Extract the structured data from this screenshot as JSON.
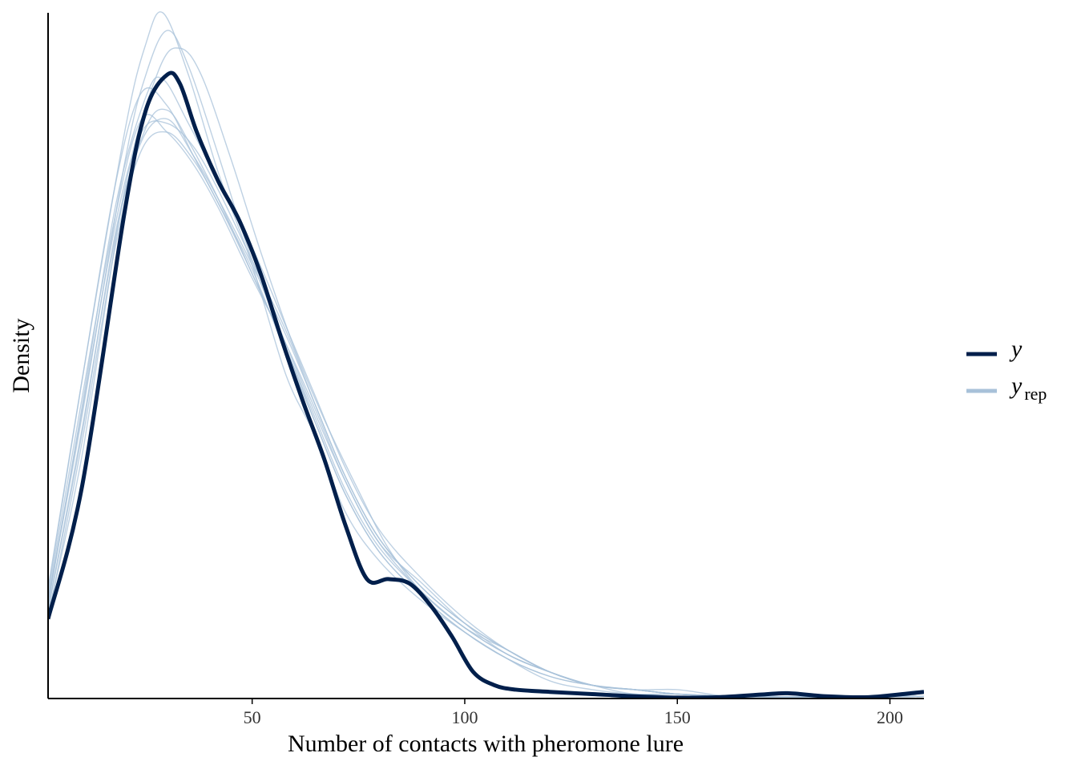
{
  "chart_data": {
    "type": "line",
    "title": "",
    "xlabel": "Number of contacts with pheromone lure",
    "ylabel": "Density",
    "xlim": [
      2,
      208
    ],
    "ylim": [
      0,
      0.0155
    ],
    "x_ticks": [
      50,
      100,
      150,
      200
    ],
    "grid": false,
    "legend_position": "right",
    "legend": [
      {
        "name": "y",
        "color": "#011f4b"
      },
      {
        "name": "y",
        "subscript": "rep",
        "color": "#a8c1d9"
      }
    ],
    "series": [
      {
        "name": "y",
        "color": "#011f4b",
        "x": [
          2,
          10,
          20,
          25,
          30,
          33,
          37,
          42,
          47,
          52,
          57,
          62,
          67,
          72,
          77,
          82,
          87,
          92,
          97,
          102,
          107,
          112,
          120,
          130,
          140,
          150,
          160,
          170,
          176,
          185,
          195,
          205,
          208
        ],
        "y": [
          0.0018,
          0.0048,
          0.011,
          0.0133,
          0.0141,
          0.0139,
          0.0128,
          0.0117,
          0.0108,
          0.0096,
          0.0081,
          0.0067,
          0.0054,
          0.0039,
          0.0027,
          0.0027,
          0.0026,
          0.0021,
          0.0014,
          0.0006,
          0.0003,
          0.0002,
          0.00015,
          0.0001,
          5e-05,
          2e-05,
          3e-05,
          9e-05,
          0.00012,
          5e-05,
          3e-05,
          0.00012,
          0.00015
        ]
      },
      {
        "name": "y_rep",
        "color": "#a8c1d9",
        "x": [
          2,
          10,
          20,
          25,
          29,
          35,
          42,
          50,
          58,
          65,
          72,
          80,
          90,
          100,
          110,
          120,
          130,
          140,
          150,
          160,
          170,
          180,
          190,
          200,
          208
        ],
        "y": [
          0.0025,
          0.0072,
          0.0128,
          0.0148,
          0.0155,
          0.0141,
          0.0119,
          0.0098,
          0.0073,
          0.0059,
          0.0042,
          0.0031,
          0.0022,
          0.0015,
          0.0009,
          0.0004,
          0.0002,
          0.0001,
          0.0001,
          5e-05,
          5e-05,
          3e-05,
          3e-05,
          4e-05,
          5e-05
        ]
      },
      {
        "name": "y_rep",
        "color": "#a8c1d9",
        "x": [
          2,
          10,
          20,
          25,
          30,
          35,
          42,
          50,
          58,
          65,
          72,
          80,
          90,
          100,
          110,
          120,
          130,
          140,
          150,
          160,
          170,
          180,
          190,
          200,
          208
        ],
        "y": [
          0.0022,
          0.0064,
          0.0121,
          0.0141,
          0.0151,
          0.0143,
          0.0123,
          0.0099,
          0.008,
          0.0064,
          0.0049,
          0.0035,
          0.0026,
          0.0017,
          0.001,
          0.0006,
          0.0003,
          0.0001,
          0.0001,
          6e-05,
          4e-05,
          3e-05,
          3e-05,
          4e-05,
          5e-05
        ]
      },
      {
        "name": "y_rep",
        "color": "#a8c1d9",
        "x": [
          2,
          10,
          20,
          28,
          33,
          38,
          45,
          52,
          60,
          67,
          75,
          82,
          90,
          100,
          110,
          120,
          130,
          140,
          150,
          160,
          170,
          180,
          190,
          200,
          208
        ],
        "y": [
          0.0019,
          0.0055,
          0.0115,
          0.0142,
          0.0147,
          0.0141,
          0.0122,
          0.0101,
          0.0079,
          0.0063,
          0.0047,
          0.0034,
          0.0024,
          0.0016,
          0.0011,
          0.0006,
          0.0003,
          0.0002,
          0.0001,
          6e-05,
          4e-05,
          3e-05,
          3e-05,
          4e-05,
          5e-05
        ]
      },
      {
        "name": "y_rep",
        "color": "#a8c1d9",
        "x": [
          2,
          10,
          18,
          24,
          30,
          36,
          42,
          50,
          58,
          65,
          72,
          80,
          90,
          100,
          110,
          120,
          130,
          140,
          150,
          160,
          170,
          180,
          190,
          200,
          208
        ],
        "y": [
          0.0024,
          0.0072,
          0.0117,
          0.0137,
          0.0134,
          0.0123,
          0.0112,
          0.0097,
          0.0078,
          0.0062,
          0.0046,
          0.0033,
          0.0023,
          0.0015,
          0.0009,
          0.0005,
          0.0003,
          0.0002,
          0.0001,
          6e-05,
          4e-05,
          3e-05,
          3e-05,
          4e-05,
          5e-05
        ]
      },
      {
        "name": "y_rep",
        "color": "#a8c1d9",
        "x": [
          2,
          10,
          18,
          25,
          29,
          35,
          42,
          50,
          58,
          65,
          72,
          80,
          90,
          100,
          110,
          120,
          130,
          140,
          150,
          160,
          170,
          180,
          190,
          200,
          208
        ],
        "y": [
          0.0021,
          0.0066,
          0.0112,
          0.0136,
          0.014,
          0.013,
          0.0117,
          0.0102,
          0.0084,
          0.0068,
          0.0052,
          0.0038,
          0.0027,
          0.0018,
          0.0011,
          0.0006,
          0.0003,
          0.0002,
          0.0002,
          7e-05,
          4e-05,
          4e-05,
          3e-05,
          4e-05,
          5e-05
        ]
      },
      {
        "name": "y_rep",
        "color": "#a8c1d9",
        "x": [
          2,
          10,
          18,
          25,
          30,
          35,
          42,
          50,
          58,
          65,
          72,
          80,
          90,
          100,
          110,
          120,
          130,
          140,
          150,
          160,
          170,
          180,
          190,
          200,
          208
        ],
        "y": [
          0.002,
          0.006,
          0.0106,
          0.0129,
          0.0133,
          0.0126,
          0.0113,
          0.0096,
          0.0079,
          0.0063,
          0.0047,
          0.0034,
          0.0024,
          0.0016,
          0.001,
          0.0006,
          0.0003,
          0.0002,
          0.0001,
          6e-05,
          4e-05,
          3e-05,
          3e-05,
          4e-05,
          5e-05
        ]
      },
      {
        "name": "y_rep",
        "color": "#a8c1d9",
        "x": [
          2,
          10,
          18,
          24,
          30,
          36,
          42,
          50,
          58,
          65,
          72,
          80,
          90,
          100,
          110,
          120,
          130,
          140,
          150,
          160,
          170,
          180,
          190,
          200,
          208
        ],
        "y": [
          0.0023,
          0.0068,
          0.011,
          0.0131,
          0.0128,
          0.0121,
          0.0111,
          0.0095,
          0.008,
          0.0065,
          0.0049,
          0.0035,
          0.0024,
          0.0016,
          0.001,
          0.0006,
          0.0003,
          0.0002,
          0.0001,
          6e-05,
          4e-05,
          3e-05,
          3e-05,
          4e-05,
          5e-05
        ]
      },
      {
        "name": "y_rep",
        "color": "#a8c1d9",
        "x": [
          2,
          10,
          18,
          24,
          30,
          36,
          42,
          50,
          58,
          65,
          72,
          80,
          90,
          100,
          110,
          120,
          130,
          140,
          150,
          160,
          170,
          180,
          190,
          200,
          208
        ],
        "y": [
          0.002,
          0.0061,
          0.0105,
          0.0126,
          0.0131,
          0.0123,
          0.0113,
          0.0098,
          0.0082,
          0.0066,
          0.005,
          0.0036,
          0.0025,
          0.0017,
          0.0011,
          0.0006,
          0.0003,
          0.0002,
          0.0001,
          6e-05,
          4e-05,
          4e-05,
          3e-05,
          4e-05,
          5e-05
        ]
      },
      {
        "name": "y_rep",
        "color": "#a8c1d9",
        "x": [
          2,
          10,
          18,
          24,
          30,
          36,
          42,
          50,
          58,
          65,
          72,
          80,
          90,
          100,
          110,
          120,
          130,
          140,
          150,
          160,
          170,
          180,
          190,
          200,
          208
        ],
        "y": [
          0.0022,
          0.0065,
          0.0108,
          0.0128,
          0.013,
          0.0125,
          0.0115,
          0.0099,
          0.0083,
          0.0066,
          0.005,
          0.0036,
          0.0025,
          0.0017,
          0.0011,
          0.0006,
          0.0003,
          0.0002,
          0.0001,
          6e-05,
          4e-05,
          4e-05,
          3e-05,
          4e-05,
          5e-05
        ]
      },
      {
        "name": "y_rep",
        "color": "#a8c1d9",
        "x": [
          2,
          10,
          18,
          24,
          30,
          36,
          42,
          50,
          58,
          65,
          72,
          80,
          90,
          100,
          110,
          120,
          130,
          140,
          150,
          160,
          170,
          180,
          190,
          200,
          208
        ],
        "y": [
          0.0018,
          0.0058,
          0.0103,
          0.0124,
          0.0128,
          0.0122,
          0.0112,
          0.0096,
          0.0079,
          0.0062,
          0.0046,
          0.0033,
          0.0023,
          0.0015,
          0.0009,
          0.0005,
          0.0003,
          0.0002,
          0.0001,
          5e-05,
          3e-05,
          3e-05,
          3e-05,
          4e-05,
          5e-05
        ]
      }
    ]
  }
}
